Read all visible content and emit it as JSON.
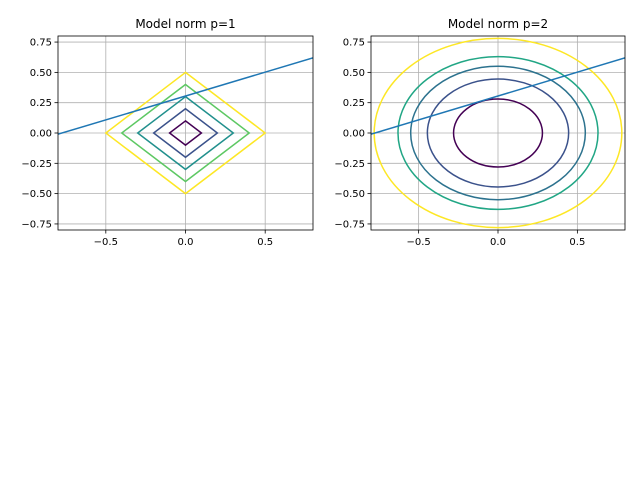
{
  "chart_data": [
    {
      "type": "line",
      "title": "Model norm p=1",
      "xlabel": "",
      "ylabel": "",
      "xlim": [
        -0.8,
        0.8
      ],
      "ylim": [
        -0.8,
        0.8
      ],
      "grid": true,
      "xticks": [
        -0.5,
        0.0,
        0.5
      ],
      "xtick_labels": [
        "−0.5",
        "0.0",
        "0.5"
      ],
      "yticks": [
        -0.75,
        -0.5,
        -0.25,
        0.0,
        0.25,
        0.5,
        0.75
      ],
      "ytick_labels": [
        "−0.75",
        "−0.50",
        "−0.25",
        "0.00",
        "0.25",
        "0.50",
        "0.75"
      ],
      "contour_norm": 1,
      "contour_levels": [
        0.1,
        0.2,
        0.3,
        0.4,
        0.5
      ],
      "contour_colors": [
        "#440154",
        "#3b528b",
        "#21908d",
        "#5dc863",
        "#fde725"
      ],
      "line": {
        "color": "#1f77b4",
        "x": [
          -0.8,
          0.8
        ],
        "y": [
          -0.01,
          0.62
        ]
      }
    },
    {
      "type": "line",
      "title": "Model norm p=2",
      "xlabel": "",
      "ylabel": "",
      "xlim": [
        -0.8,
        0.8
      ],
      "ylim": [
        -0.8,
        0.8
      ],
      "grid": true,
      "xticks": [
        -0.5,
        0.0,
        0.5
      ],
      "xtick_labels": [
        "−0.5",
        "0.0",
        "0.5"
      ],
      "yticks": [
        -0.75,
        -0.5,
        -0.25,
        0.0,
        0.25,
        0.5,
        0.75
      ],
      "ytick_labels": [
        "−0.75",
        "−0.50",
        "−0.25",
        "0.00",
        "0.25",
        "0.50",
        "0.75"
      ],
      "contour_norm": 2,
      "contour_levels": [
        0.28,
        0.445,
        0.55,
        0.63,
        0.78
      ],
      "contour_colors": [
        "#440154",
        "#3b528b",
        "#2c728e",
        "#21a685",
        "#fde725"
      ],
      "line": {
        "color": "#1f77b4",
        "x": [
          -0.8,
          0.8
        ],
        "y": [
          -0.01,
          0.62
        ]
      }
    }
  ]
}
